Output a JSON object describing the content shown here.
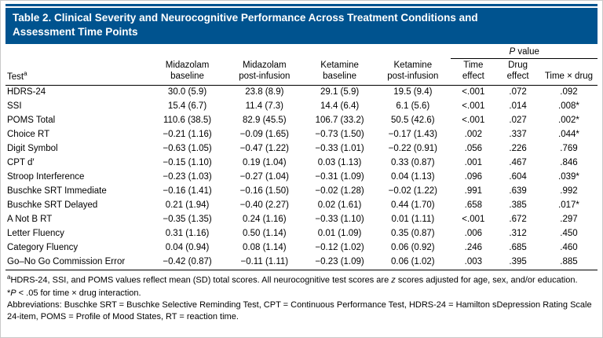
{
  "title": {
    "line1": "Table 2. Clinical Severity and Neurocognitive Performance Across Treatment Conditions and",
    "line2": "Assessment Time Points"
  },
  "accent_color": "#00538f",
  "table": {
    "headers": {
      "test": "Test",
      "test_sup": "a",
      "pvalue_group": {
        "p": "P",
        "rest": " value"
      },
      "cols": [
        "Midazolam\nbaseline",
        "Midazolam\npost-infusion",
        "Ketamine\nbaseline",
        "Ketamine\npost-infusion",
        "Time\neffect",
        "Drug\neffect",
        "Time × drug"
      ]
    },
    "rows": [
      {
        "test": "HDRS-24",
        "values": [
          "30.0 (5.9)",
          "23.8 (8.9)",
          "29.1 (5.9)",
          "19.5 (9.4)",
          "<.001",
          ".072",
          ".092"
        ]
      },
      {
        "test": "SSI",
        "values": [
          "15.4 (6.7)",
          "11.4 (7.3)",
          "14.4 (6.4)",
          "6.1 (5.6)",
          "<.001",
          ".014",
          ".008*"
        ]
      },
      {
        "test": "POMS Total",
        "values": [
          "110.6 (38.5)",
          "82.9 (45.5)",
          "106.7 (33.2)",
          "50.5 (42.6)",
          "<.001",
          ".027",
          ".002*"
        ]
      },
      {
        "test": "Choice RT",
        "values": [
          "−0.21 (1.16)",
          "−0.09 (1.65)",
          "−0.73 (1.50)",
          "−0.17 (1.43)",
          ".002",
          ".337",
          ".044*"
        ]
      },
      {
        "test": "Digit Symbol",
        "values": [
          "−0.63 (1.05)",
          "−0.47 (1.22)",
          "−0.33 (1.01)",
          "−0.22 (0.91)",
          ".056",
          ".226",
          ".769"
        ]
      },
      {
        "test": "CPT d′",
        "values": [
          "−0.15 (1.10)",
          "0.19 (1.04)",
          "0.03 (1.13)",
          "0.33 (0.87)",
          ".001",
          ".467",
          ".846"
        ]
      },
      {
        "test": "Stroop Interference",
        "values": [
          "−0.23 (1.03)",
          "−0.27 (1.04)",
          "−0.31 (1.09)",
          "0.04 (1.13)",
          ".096",
          ".604",
          ".039*"
        ]
      },
      {
        "test": "Buschke SRT Immediate",
        "values": [
          "−0.16 (1.41)",
          "−0.16 (1.50)",
          "−0.02 (1.28)",
          "−0.02 (1.22)",
          ".991",
          ".639",
          ".992"
        ]
      },
      {
        "test": "Buschke SRT Delayed",
        "values": [
          "0.21 (1.94)",
          "−0.40 (2.27)",
          "0.02 (1.61)",
          "0.44 (1.70)",
          ".658",
          ".385",
          ".017*"
        ]
      },
      {
        "test": "A Not B RT",
        "values": [
          "−0.35 (1.35)",
          "0.24 (1.16)",
          "−0.33 (1.10)",
          "0.01 (1.11)",
          "<.001",
          ".672",
          ".297"
        ]
      },
      {
        "test": "Letter Fluency",
        "values": [
          "0.31 (1.16)",
          "0.50 (1.14)",
          "0.01 (1.09)",
          "0.35 (0.87)",
          ".006",
          ".312",
          ".450"
        ]
      },
      {
        "test": "Category Fluency",
        "values": [
          "0.04 (0.94)",
          "0.08 (1.14)",
          "−0.12 (1.02)",
          "0.06 (0.92)",
          ".246",
          ".685",
          ".460"
        ]
      },
      {
        "test": "Go–No Go Commission Error",
        "values": [
          "−0.42 (0.87)",
          "−0.11 (1.11)",
          "−0.23 (1.09)",
          "0.06 (1.02)",
          ".003",
          ".395",
          ".885"
        ]
      }
    ]
  },
  "footnotes": {
    "a_sup": "a",
    "a_text1": "HDRS-24, SSI, and POMS values reflect mean (SD) total scores. All neurocognitive test scores are ",
    "a_z": "z",
    "a_text2": " scores adjusted for age, sex, and/or education.",
    "star_prefix": "*",
    "star_p": "P",
    "star_rest": " < .05 for time × drug interaction.",
    "abbrev": "Abbreviations: Buschke SRT = Buschke Selective Reminding Test, CPT = Continuous Performance Test, HDRS-24 = Hamilton sDepression Rating Scale 24-item, POMS = Profile of Mood States, RT = reaction time."
  }
}
